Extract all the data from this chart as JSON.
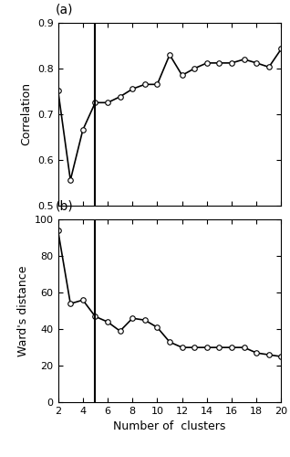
{
  "x": [
    2,
    3,
    4,
    5,
    6,
    7,
    8,
    9,
    10,
    11,
    12,
    13,
    14,
    15,
    16,
    17,
    18,
    19,
    20
  ],
  "corr": [
    0.752,
    0.555,
    0.665,
    0.725,
    0.725,
    0.738,
    0.755,
    0.765,
    0.765,
    0.83,
    0.785,
    0.8,
    0.812,
    0.812,
    0.812,
    0.82,
    0.812,
    0.803,
    0.843
  ],
  "ward": [
    94,
    54,
    56,
    47,
    44,
    39,
    46,
    45,
    41,
    33,
    30,
    30,
    30,
    30,
    30,
    30,
    27,
    26,
    25
  ],
  "vline_x": 5,
  "corr_ylim": [
    0.5,
    0.9
  ],
  "corr_yticks": [
    0.5,
    0.6,
    0.7,
    0.8,
    0.9
  ],
  "ward_ylim": [
    0,
    100
  ],
  "ward_yticks": [
    0,
    20,
    40,
    60,
    80,
    100
  ],
  "xlim": [
    2,
    20
  ],
  "xticks": [
    2,
    4,
    6,
    8,
    10,
    12,
    14,
    16,
    18,
    20
  ],
  "xlabel": "Number of  clusters",
  "corr_ylabel": "Correlation",
  "ward_ylabel": "Ward's distance",
  "label_a": "(a)",
  "label_b": "(b)",
  "line_color": "#000000",
  "marker": "o",
  "marker_facecolor": "white",
  "marker_edgecolor": "black",
  "marker_size": 4,
  "vline_color": "#000000",
  "vline_lw": 1.5,
  "line_lw": 1.2,
  "tick_labelsize": 8,
  "label_fontsize": 10,
  "ylabel_fontsize": 9,
  "xlabel_fontsize": 9
}
